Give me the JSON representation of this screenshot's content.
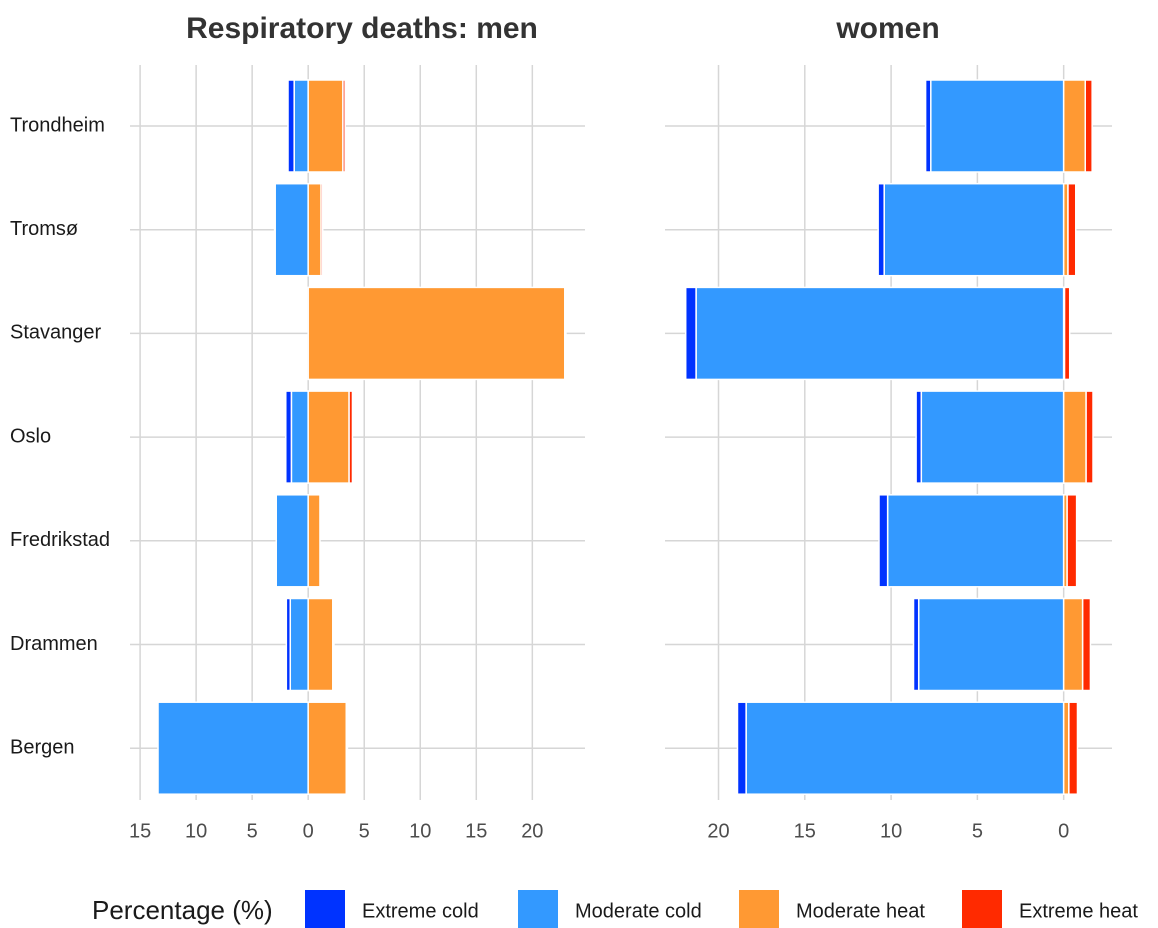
{
  "chart_data": [
    {
      "type": "bar",
      "orientation": "horizontal",
      "stacked": true,
      "title": "Respiratory deaths: men",
      "legend_title": "Percentage (%)",
      "categories": [
        "Trondheim",
        "Tromsø",
        "Stavanger",
        "Oslo",
        "Fredrikstad",
        "Drammen",
        "Bergen"
      ],
      "series": [
        {
          "name": "Extreme cold",
          "color": "#0033ff",
          "values": [
            -0.55,
            -0.05,
            0,
            -0.5,
            0,
            -0.35,
            0
          ]
        },
        {
          "name": "Moderate cold",
          "color": "#3399ff",
          "values": [
            -1.25,
            -2.95,
            0,
            -1.5,
            -2.85,
            -1.6,
            -13.4
          ]
        },
        {
          "name": "Moderate heat",
          "color": "#ff9933",
          "values": [
            3.1,
            1.15,
            22.9,
            3.65,
            1.05,
            2.2,
            3.4
          ]
        },
        {
          "name": "Extreme heat",
          "color": "#ff2a00",
          "values": [
            0.2,
            0.15,
            0.1,
            0.3,
            0,
            0.1,
            0.1
          ]
        }
      ],
      "xlim": [
        -15.9,
        24.7
      ],
      "xticks": [
        {
          "value": -15,
          "label": "15"
        },
        {
          "value": -10,
          "label": "10"
        },
        {
          "value": -5,
          "label": "5"
        },
        0,
        5,
        10,
        15,
        20
      ],
      "grid": true
    },
    {
      "type": "bar",
      "orientation": "horizontal",
      "stacked": true,
      "title": "women",
      "categories": [
        "Trondheim",
        "Tromsø",
        "Stavanger",
        "Oslo",
        "Fredrikstad",
        "Drammen",
        "Bergen"
      ],
      "series": [
        {
          "name": "Extreme cold",
          "color": "#0033ff",
          "values": [
            -0.3,
            -0.35,
            -0.6,
            -0.3,
            -0.5,
            -0.3,
            -0.5
          ]
        },
        {
          "name": "Moderate cold",
          "color": "#3399ff",
          "values": [
            -7.7,
            -10.4,
            -21.3,
            -8.25,
            -10.2,
            -8.4,
            -18.4
          ]
        },
        {
          "name": "Moderate heat",
          "color": "#ff9933",
          "values": [
            1.25,
            0.25,
            0.05,
            1.3,
            0.2,
            1.1,
            0.3
          ]
        },
        {
          "name": "Extreme heat",
          "color": "#ff2a00",
          "values": [
            0.4,
            0.45,
            0.3,
            0.4,
            0.55,
            0.45,
            0.5
          ]
        }
      ],
      "xlim": [
        -23.1,
        2.8
      ],
      "xticks": [
        {
          "value": -20,
          "label": "20"
        },
        {
          "value": -15,
          "label": "15"
        },
        {
          "value": -10,
          "label": "10"
        },
        {
          "value": -5,
          "label": "5"
        },
        0
      ],
      "grid": true
    }
  ]
}
